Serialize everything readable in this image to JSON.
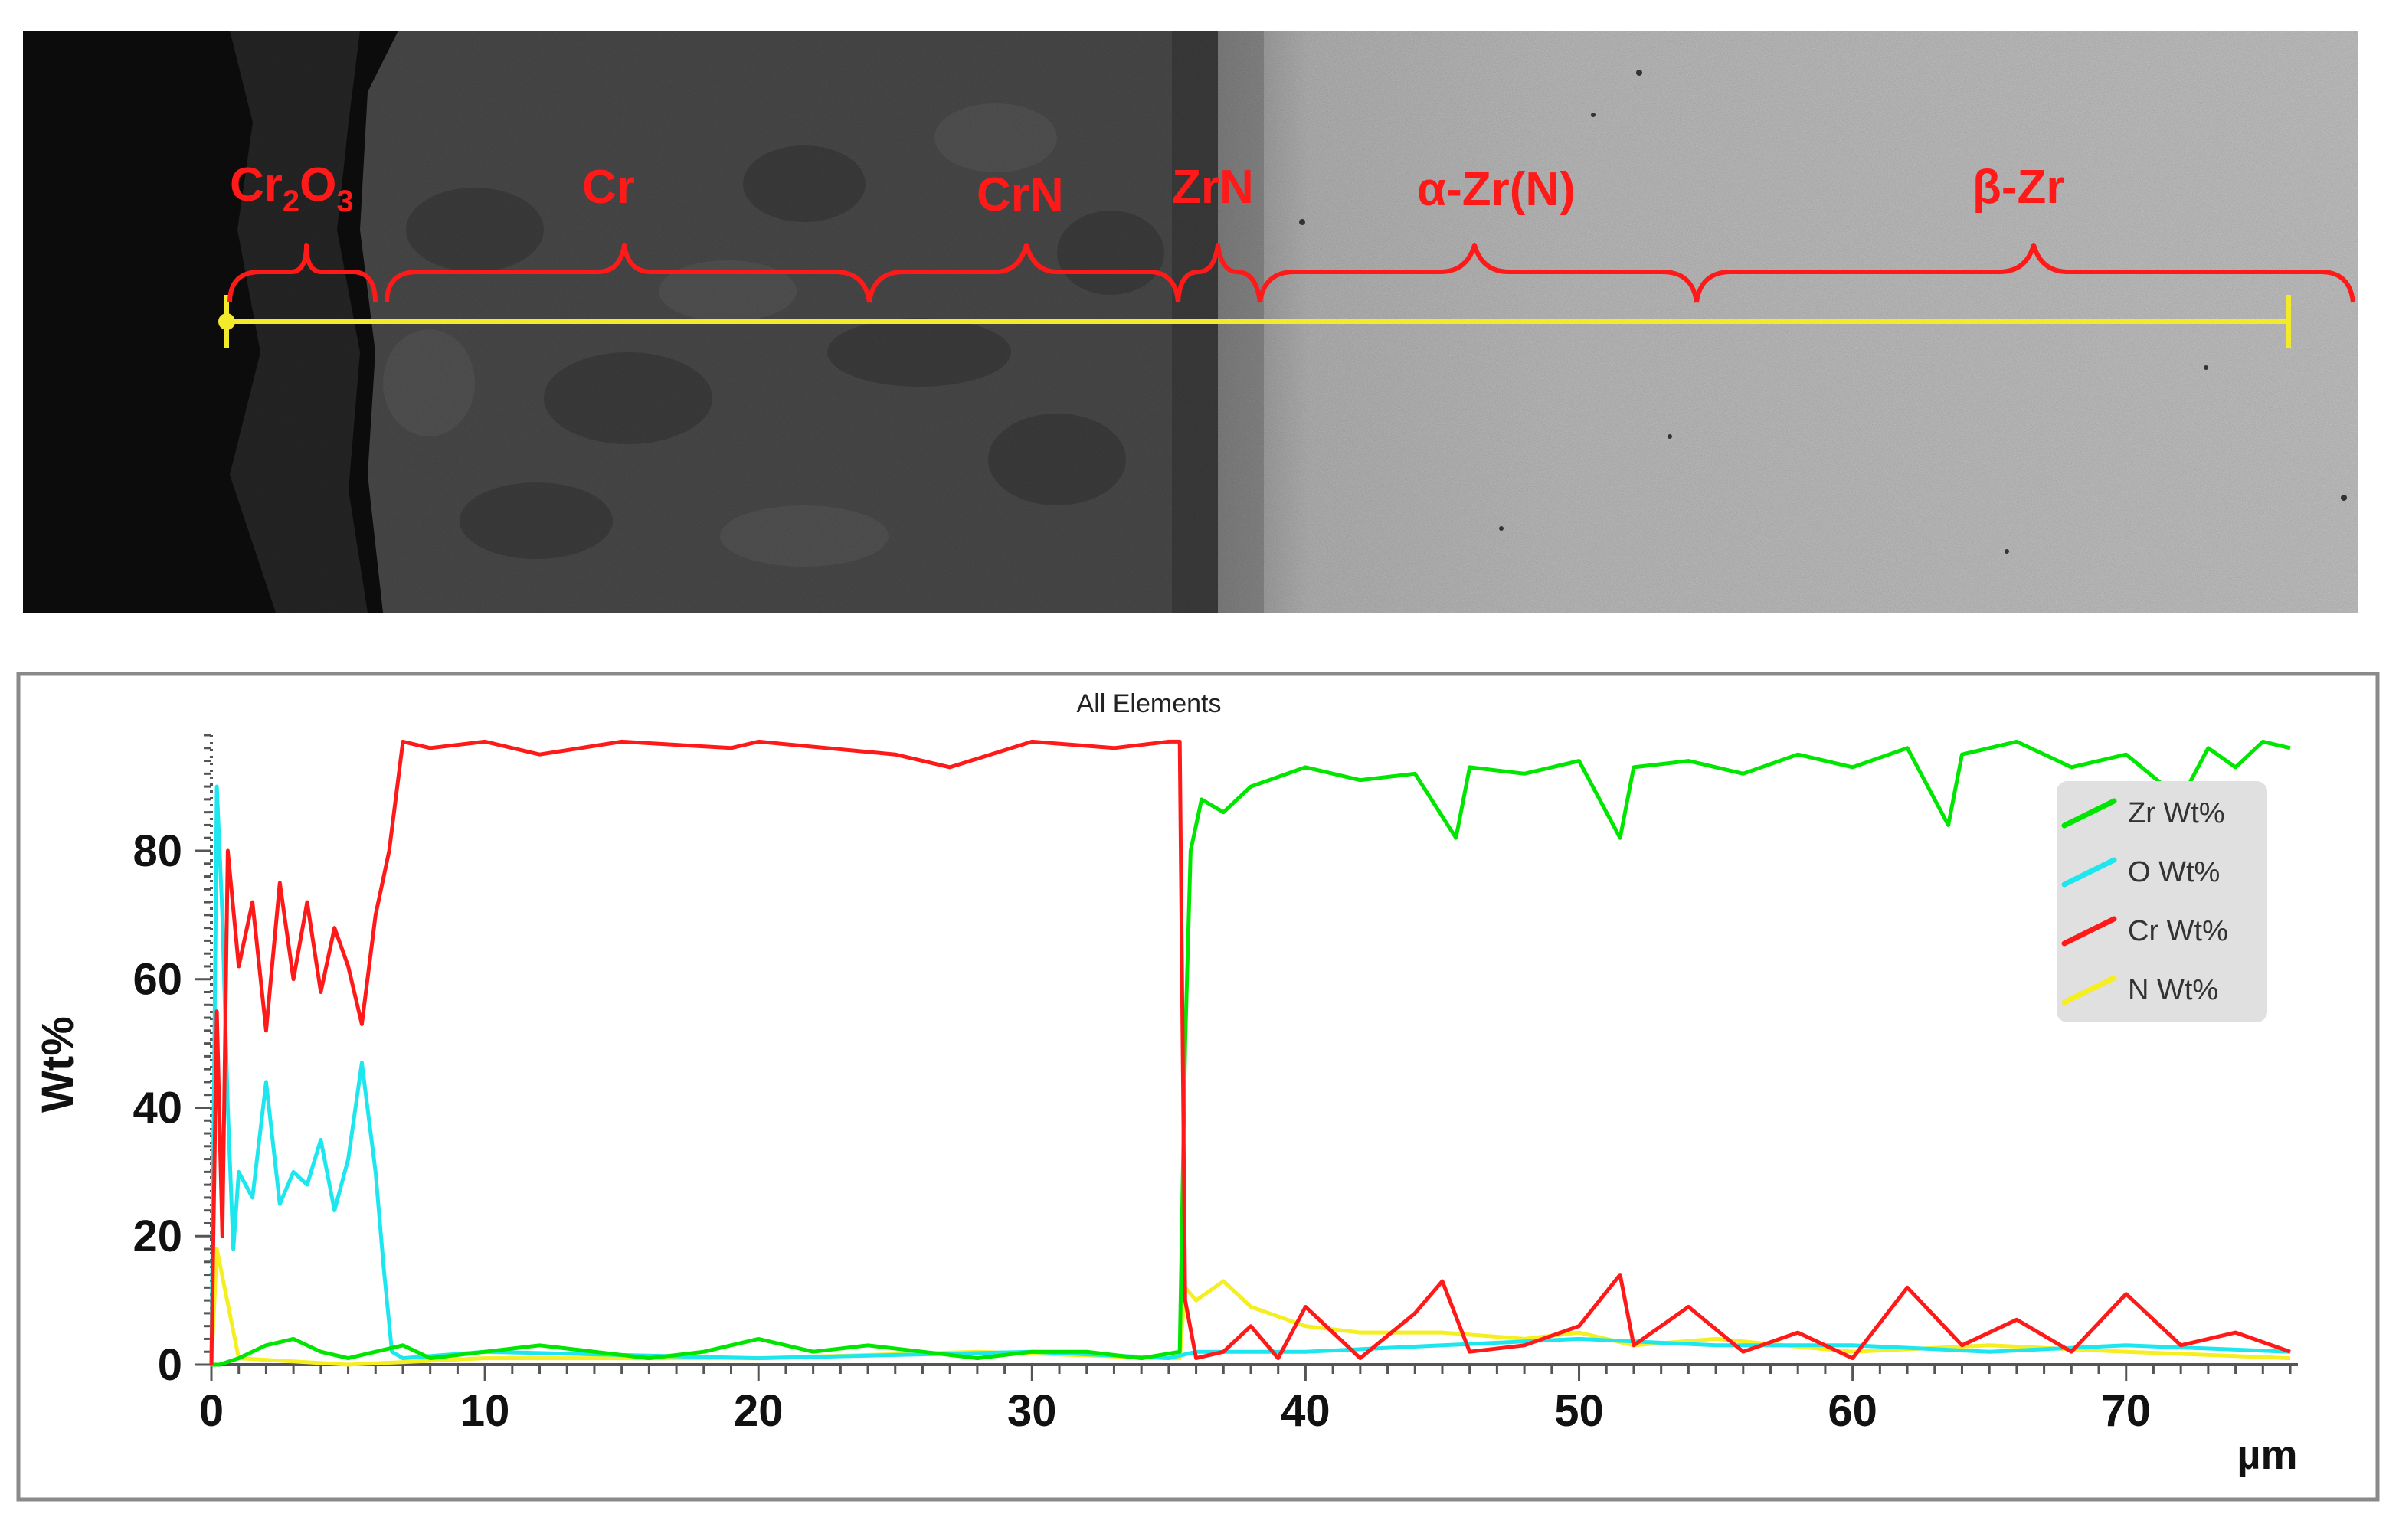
{
  "micrograph": {
    "phase_labels": [
      {
        "id": "cr2o3",
        "html": "Cr<tspan font-size=\"40\" dy=\"14\">2</tspan><tspan dy=\"-14\">O</tspan><tspan font-size=\"40\" dy=\"14\">3</tspan>"
      },
      {
        "id": "cr",
        "text": "Cr"
      },
      {
        "id": "crn",
        "text": "CrN"
      },
      {
        "id": "zrn",
        "text": "ZrN"
      },
      {
        "id": "alpha-zr",
        "text": "α-Zr(N)"
      },
      {
        "id": "beta-zr",
        "text": "β-Zr"
      }
    ],
    "phase_text": {
      "cr2o3": "Cr2O3",
      "cr": "Cr",
      "crn": "CrN",
      "zrn": "ZrN",
      "alpha_zr": "α-Zr(N)",
      "beta_zr": "β-Zr"
    },
    "colors": {
      "label": "#ff1a1a",
      "scan_line": "#f2ea2a"
    }
  },
  "chart_data": {
    "type": "line",
    "title": "All Elements",
    "xlabel": "µm",
    "ylabel": "Wt%",
    "xlim": [
      0,
      76
    ],
    "ylim": [
      0,
      98
    ],
    "xticks": [
      0,
      10,
      20,
      30,
      40,
      50,
      60,
      70
    ],
    "yticks": [
      0,
      20,
      40,
      60,
      80
    ],
    "legend_position": "right",
    "series": [
      {
        "name": "Zr Wt%",
        "color": "#00e600",
        "x": [
          0,
          0.3,
          1,
          2,
          3,
          4,
          5,
          6,
          7,
          8,
          10,
          12,
          14,
          16,
          18,
          20,
          22,
          24,
          26,
          28,
          30,
          32,
          34,
          35.4,
          35.6,
          35.8,
          36.2,
          37,
          38,
          40,
          42,
          44,
          45.5,
          46,
          48,
          50,
          51.5,
          52,
          54,
          56,
          58,
          60,
          62,
          63.5,
          64,
          66,
          68,
          70,
          72,
          73,
          74,
          75,
          76
        ],
        "y": [
          0,
          0,
          1,
          3,
          4,
          2,
          1,
          2,
          3,
          1,
          2,
          3,
          2,
          1,
          2,
          4,
          2,
          3,
          2,
          1,
          2,
          2,
          1,
          2,
          50,
          80,
          88,
          86,
          90,
          93,
          91,
          92,
          82,
          93,
          92,
          94,
          82,
          93,
          94,
          92,
          95,
          93,
          96,
          84,
          95,
          97,
          93,
          95,
          88,
          96,
          93,
          97,
          96
        ]
      },
      {
        "name": "O Wt%",
        "color": "#1ee6ee",
        "x": [
          0,
          0.2,
          0.4,
          0.6,
          0.8,
          1,
          1.5,
          2,
          2.5,
          3,
          3.5,
          4,
          4.5,
          5,
          5.5,
          6,
          6.3,
          6.6,
          7,
          10,
          20,
          30,
          35,
          36,
          40,
          45,
          50,
          55,
          60,
          65,
          70,
          76
        ],
        "y": [
          0,
          90,
          70,
          40,
          18,
          30,
          26,
          44,
          25,
          30,
          28,
          35,
          24,
          32,
          47,
          30,
          15,
          2,
          1,
          2,
          1,
          2,
          1,
          2,
          2,
          3,
          4,
          3,
          3,
          2,
          3,
          2
        ]
      },
      {
        "name": "Cr Wt%",
        "color": "#ff1a1a",
        "x": [
          0,
          0.2,
          0.4,
          0.6,
          1,
          1.5,
          2,
          2.5,
          3,
          3.5,
          4,
          4.5,
          5,
          5.5,
          6,
          6.5,
          7,
          8,
          10,
          12,
          15,
          19,
          20,
          25,
          27,
          30,
          33,
          35,
          35.4,
          35.6,
          36,
          37,
          38,
          39,
          40,
          42,
          44,
          45,
          46,
          48,
          50,
          51.5,
          52,
          54,
          56,
          58,
          60,
          62,
          64,
          66,
          68,
          70,
          72,
          74,
          76
        ],
        "y": [
          0,
          55,
          20,
          80,
          62,
          72,
          52,
          75,
          60,
          72,
          58,
          68,
          62,
          53,
          70,
          80,
          97,
          96,
          97,
          95,
          97,
          96,
          97,
          95,
          93,
          97,
          96,
          97,
          97,
          10,
          1,
          2,
          6,
          1,
          9,
          1,
          8,
          13,
          2,
          3,
          6,
          14,
          3,
          9,
          2,
          5,
          1,
          12,
          3,
          7,
          2,
          11,
          3,
          5,
          2
        ]
      },
      {
        "name": "N Wt%",
        "color": "#f5ee20",
        "x": [
          0,
          0.2,
          1,
          5,
          10,
          20,
          28,
          35,
          35.4,
          35.6,
          36,
          37,
          38,
          40,
          42,
          45,
          48,
          50,
          52,
          55,
          60,
          65,
          70,
          76
        ],
        "y": [
          0,
          18,
          1,
          0,
          1,
          1,
          2,
          1,
          1,
          12,
          10,
          13,
          9,
          6,
          5,
          5,
          4,
          5,
          3,
          4,
          2,
          3,
          2,
          1
        ]
      }
    ]
  }
}
